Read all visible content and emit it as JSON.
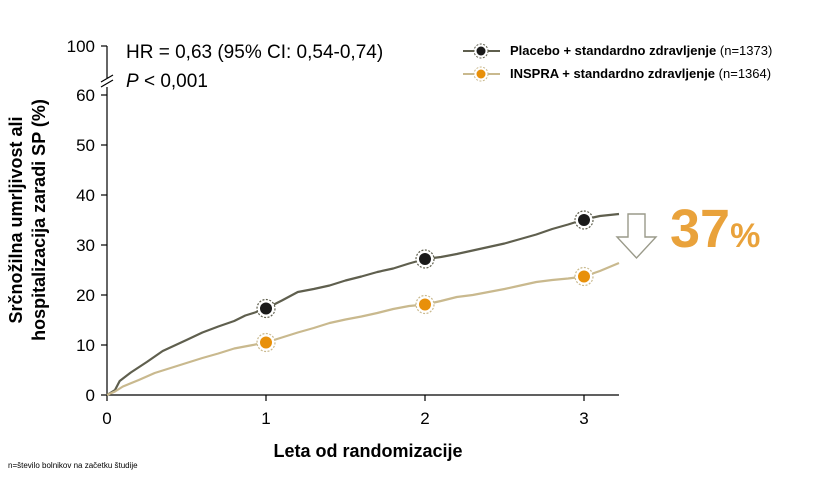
{
  "stats": {
    "hr_text": "HR = 0,63 (95% CI: 0,54-0,74)",
    "p_symbol": "P",
    "p_value": " < 0,001"
  },
  "reduction": {
    "value": "37",
    "unit": "%"
  },
  "footnote": "n=število bolnikov na začetku študije",
  "colors": {
    "placebo": "#5F5F4E",
    "inspra": "#C9B98E",
    "inspra_marker": "#E8900A",
    "reduction": "#E9A23B"
  },
  "chart_data": {
    "type": "line",
    "title": "",
    "xlabel": "Leta od randomizacije",
    "ylabel_lines": [
      "Srčnožilna umrljivost ali",
      "hospitalizacija zaradi SP (%)"
    ],
    "xlim": [
      0,
      3.22
    ],
    "ylim": [
      0,
      60
    ],
    "x_ticks": [
      0,
      1,
      2,
      3
    ],
    "y_ticks": [
      0,
      10,
      20,
      30,
      40,
      50,
      60
    ],
    "y_break_label": "100",
    "grid": false,
    "legend_position": "top-right",
    "series": [
      {
        "name": "Placebo + standardno zdravljenje",
        "n_label": "(n=1373)",
        "x": [
          0,
          0.05,
          0.08,
          0.15,
          0.25,
          0.35,
          0.5,
          0.6,
          0.7,
          0.8,
          0.87,
          0.93,
          1.0,
          1.1,
          1.2,
          1.3,
          1.4,
          1.5,
          1.6,
          1.7,
          1.8,
          1.9,
          2.0,
          2.1,
          2.2,
          2.3,
          2.4,
          2.5,
          2.6,
          2.7,
          2.8,
          2.9,
          3.0,
          3.1,
          3.22
        ],
        "y": [
          0,
          1,
          2.8,
          4.5,
          6.6,
          8.8,
          11,
          12.5,
          13.7,
          14.8,
          15.9,
          16.5,
          17.3,
          18.9,
          20.6,
          21.2,
          21.9,
          22.9,
          23.7,
          24.6,
          25.3,
          26.3,
          27.2,
          27.6,
          28.2,
          28.9,
          29.6,
          30.3,
          31.2,
          32.1,
          33.2,
          34.1,
          35.1,
          35.8,
          36.2
        ],
        "markers": [
          [
            1,
            17.3
          ],
          [
            2,
            27.2
          ],
          [
            3,
            35
          ]
        ]
      },
      {
        "name": "INSPRA + standardno zdravljenje",
        "n_label": "(n=1364)",
        "x": [
          0,
          0.05,
          0.1,
          0.2,
          0.3,
          0.4,
          0.5,
          0.6,
          0.7,
          0.8,
          0.9,
          1.0,
          1.1,
          1.2,
          1.3,
          1.4,
          1.5,
          1.6,
          1.7,
          1.8,
          1.9,
          2.0,
          2.1,
          2.2,
          2.3,
          2.4,
          2.5,
          2.6,
          2.7,
          2.8,
          2.9,
          3.0,
          3.1,
          3.22
        ],
        "y": [
          0,
          0.7,
          1.7,
          3,
          4.4,
          5.4,
          6.4,
          7.4,
          8.3,
          9.3,
          9.9,
          10.5,
          11.5,
          12.5,
          13.4,
          14.4,
          15.1,
          15.7,
          16.4,
          17.2,
          17.8,
          18.1,
          18.8,
          19.6,
          20,
          20.6,
          21.2,
          21.9,
          22.6,
          23,
          23.3,
          23.7,
          24.8,
          26.4
        ],
        "markers": [
          [
            1,
            10.5
          ],
          [
            2,
            18.1
          ],
          [
            3,
            23.7
          ]
        ]
      }
    ]
  }
}
